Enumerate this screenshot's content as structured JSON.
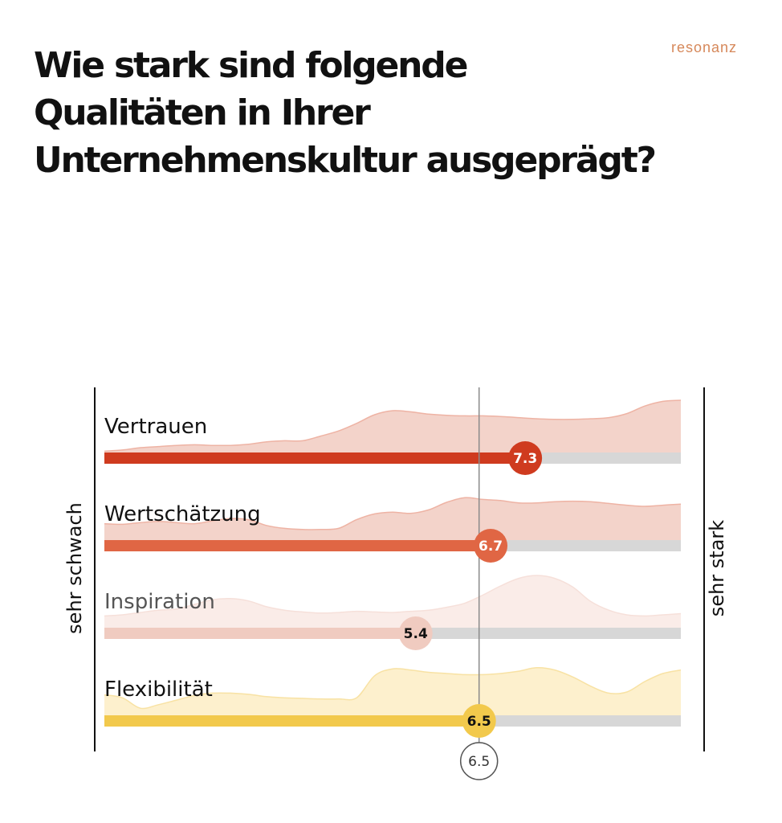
{
  "header": {
    "title": "Wie stark sind folgende Qualitäten in Ihrer Unternehmenskultur ausgeprägt?",
    "brand": "resonanz"
  },
  "chart_data": {
    "type": "bar",
    "title": "Wie stark sind folgende Qualitäten in Ihrer Unternehmenskultur ausgeprägt?",
    "axis_left_label": "sehr schwach",
    "axis_right_label": "sehr stark",
    "xlim": [
      0,
      10
    ],
    "categories": [
      "Vertrauen",
      "Wertschätzung",
      "Inspiration",
      "Flexibilität"
    ],
    "values": [
      7.3,
      6.7,
      5.4,
      6.5
    ],
    "value_labels": [
      "7.3",
      "6.7",
      "5.4",
      "6.5"
    ],
    "reference_line": {
      "value": 6.5,
      "label": "6.5"
    },
    "distributions": [
      [
        0.12,
        0.14,
        0.18,
        0.2,
        0.22,
        0.23,
        0.22,
        0.22,
        0.24,
        0.28,
        0.3,
        0.3,
        0.38,
        0.47,
        0.6,
        0.75,
        0.82,
        0.8,
        0.76,
        0.74,
        0.73,
        0.73,
        0.72,
        0.7,
        0.68,
        0.67,
        0.67,
        0.68,
        0.7,
        0.77,
        0.9,
        0.98,
        1.0
      ],
      [
        0.38,
        0.37,
        0.4,
        0.42,
        0.4,
        0.38,
        0.43,
        0.47,
        0.45,
        0.35,
        0.3,
        0.28,
        0.28,
        0.3,
        0.45,
        0.55,
        0.58,
        0.56,
        0.62,
        0.75,
        0.83,
        0.8,
        0.78,
        0.74,
        0.74,
        0.76,
        0.77,
        0.76,
        0.73,
        0.7,
        0.68,
        0.7,
        0.72
      ],
      [
        0.3,
        0.32,
        0.36,
        0.4,
        0.42,
        0.5,
        0.58,
        0.6,
        0.56,
        0.46,
        0.4,
        0.37,
        0.35,
        0.36,
        0.38,
        0.37,
        0.36,
        0.38,
        0.4,
        0.45,
        0.52,
        0.66,
        0.82,
        0.95,
        1.0,
        0.95,
        0.8,
        0.55,
        0.4,
        0.32,
        0.3,
        0.32,
        0.34
      ],
      [
        0.45,
        0.4,
        0.22,
        0.28,
        0.36,
        0.44,
        0.48,
        0.48,
        0.46,
        0.42,
        0.4,
        0.39,
        0.38,
        0.38,
        0.4,
        0.78,
        0.9,
        0.88,
        0.84,
        0.82,
        0.8,
        0.8,
        0.82,
        0.86,
        0.92,
        0.88,
        0.76,
        0.6,
        0.48,
        0.5,
        0.68,
        0.82,
        0.88
      ]
    ],
    "colors": {
      "bars": [
        "#cf3b1f",
        "#e06644",
        "#f0cbc0",
        "#f2c94c"
      ],
      "areas": [
        "#f3d3ca",
        "#f3d3ca",
        "#faece8",
        "#fdf0cd"
      ],
      "area_strokes": [
        "#eeb3a4",
        "#eeb3a4",
        "#f6e0da",
        "#f8e2a4"
      ],
      "track": "#d7d7d7",
      "label_text": [
        "#ffffff",
        "#ffffff",
        "#111111",
        "#111111"
      ],
      "row_text": [
        "#111111",
        "#111111",
        "#555555",
        "#111111"
      ]
    },
    "grid": false,
    "legend": "none"
  }
}
